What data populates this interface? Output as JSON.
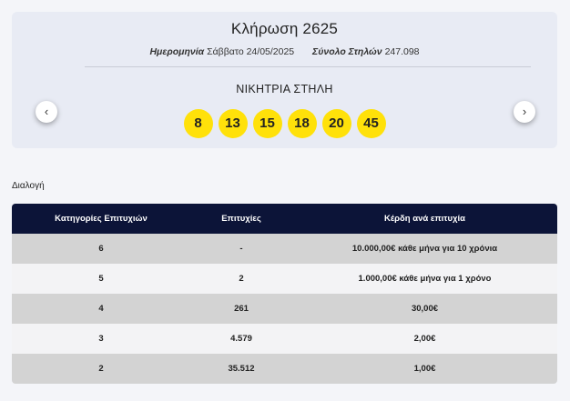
{
  "draw": {
    "title": "Κλήρωση 2625",
    "date_label": "Ημερομηνία",
    "date_value": "Σάββατο 24/05/2025",
    "columns_label": "Σύνολο Στηλών",
    "columns_value": "247.098",
    "winning_title": "ΝΙΚΗΤΡΙΑ ΣΤΗΛΗ",
    "numbers": [
      "8",
      "13",
      "15",
      "18",
      "20",
      "45"
    ],
    "prev_icon": "‹",
    "next_icon": "›"
  },
  "section_label": "Διαλογή",
  "table": {
    "headers": [
      "Κατηγορίες Επιτυχιών",
      "Επιτυχίες",
      "Κέρδη ανά επιτυχία"
    ],
    "rows": [
      [
        "6",
        "-",
        "10.000,00€ κάθε μήνα για 10 χρόνια"
      ],
      [
        "5",
        "2",
        "1.000,00€ κάθε μήνα για 1 χρόνο"
      ],
      [
        "4",
        "261",
        "30,00€"
      ],
      [
        "3",
        "4.579",
        "2,00€"
      ],
      [
        "2",
        "35.512",
        "1,00€"
      ]
    ]
  },
  "colors": {
    "ball": "#ffe10a",
    "header_bg": "#0c1438",
    "card_bg": "#e8ebf4"
  }
}
